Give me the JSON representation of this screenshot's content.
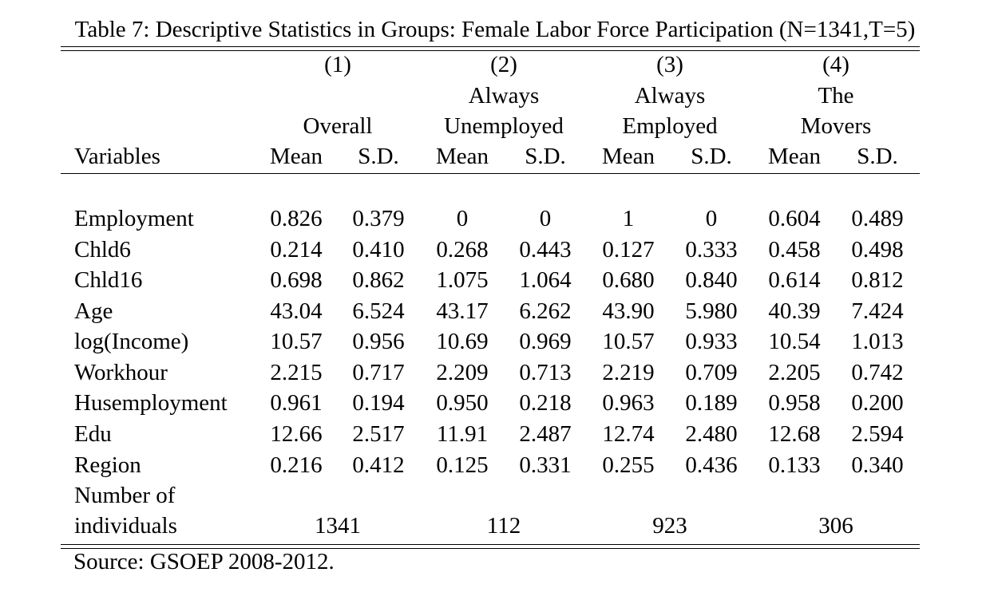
{
  "table": {
    "caption": "Table 7: Descriptive Statistics in Groups: Female Labor Force Participation (N=1341,T=5)",
    "groups": [
      {
        "number": "(1)",
        "line1": "",
        "line2": "Overall"
      },
      {
        "number": "(2)",
        "line1": "Always",
        "line2": "Unemployed"
      },
      {
        "number": "(3)",
        "line1": "Always",
        "line2": "Employed"
      },
      {
        "number": "(4)",
        "line1": "The",
        "line2": "Movers"
      }
    ],
    "variables_header": "Variables",
    "stat_headers": [
      "Mean",
      "S.D.",
      "Mean",
      "S.D.",
      "Mean",
      "S.D.",
      "Mean",
      "S.D."
    ],
    "rows": [
      {
        "label": "Employment",
        "values": [
          "0.826",
          "0.379",
          "0",
          "0",
          "1",
          "0",
          "0.604",
          "0.489"
        ]
      },
      {
        "label": "Chld6",
        "values": [
          "0.214",
          "0.410",
          "0.268",
          "0.443",
          "0.127",
          "0.333",
          "0.458",
          "0.498"
        ]
      },
      {
        "label": "Chld16",
        "values": [
          "0.698",
          "0.862",
          "1.075",
          "1.064",
          "0.680",
          "0.840",
          "0.614",
          "0.812"
        ]
      },
      {
        "label": "Age",
        "values": [
          "43.04",
          "6.524",
          "43.17",
          "6.262",
          "43.90",
          "5.980",
          "40.39",
          "7.424"
        ]
      },
      {
        "label": "log(Income)",
        "values": [
          "10.57",
          "0.956",
          "10.69",
          "0.969",
          "10.57",
          "0.933",
          "10.54",
          "1.013"
        ]
      },
      {
        "label": "Workhour",
        "values": [
          "2.215",
          "0.717",
          "2.209",
          "0.713",
          "2.219",
          "0.709",
          "2.205",
          "0.742"
        ]
      },
      {
        "label": "Husemployment",
        "values": [
          "0.961",
          "0.194",
          "0.950",
          "0.218",
          "0.963",
          "0.189",
          "0.958",
          "0.200"
        ]
      },
      {
        "label": "Edu",
        "values": [
          "12.66",
          "2.517",
          "11.91",
          "2.487",
          "12.74",
          "2.480",
          "12.68",
          "2.594"
        ]
      },
      {
        "label": "Region",
        "values": [
          "0.216",
          "0.412",
          "0.125",
          "0.331",
          "0.255",
          "0.436",
          "0.133",
          "0.340"
        ]
      }
    ],
    "count_row": {
      "label_line1": "Number of",
      "label_line2": "individuals",
      "values": [
        "1341",
        "112",
        "923",
        "306"
      ]
    },
    "source": "Source: GSOEP 2008-2012."
  }
}
